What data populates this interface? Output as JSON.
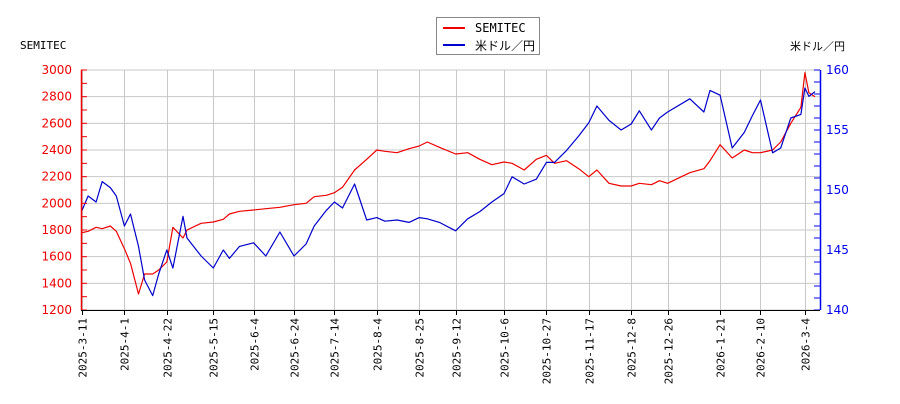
{
  "chart_data": {
    "type": "line",
    "title": "",
    "left_axis_title": "SEMITEC",
    "right_axis_title": "米ドル／円",
    "legend": [
      "SEMITEC",
      "米ドル／円"
    ],
    "legend_position": "top-center",
    "grid": true,
    "colors": {
      "semitec": "#ee0000",
      "usdjpy": "#0000cc",
      "grid": "#c8c8c8",
      "left_axis": "#ee0000",
      "right_axis": "#0000ee"
    },
    "y_left": {
      "label": "SEMITEC",
      "ylim": [
        1200,
        3000
      ],
      "ticks": [
        1200,
        1400,
        1600,
        1800,
        2000,
        2200,
        2400,
        2600,
        2800,
        3000
      ]
    },
    "y_right": {
      "label": "米ドル／円",
      "ylim": [
        140,
        160
      ],
      "ticks": [
        140,
        145,
        150,
        155,
        160
      ]
    },
    "x_tick_labels": [
      "2025-3-11",
      "2025-4-1",
      "2025-4-22",
      "2025-5-15",
      "2025-6-4",
      "2025-6-24",
      "2025-7-14",
      "2025-8-4",
      "2025-8-25",
      "2025-9-12",
      "2025-10-6",
      "2025-10-27",
      "2025-11-17",
      "2025-12-8",
      "2025-12-26",
      "2026-1-21",
      "2026-2-10",
      "2026-3-4"
    ],
    "x": [
      "2025-3-11",
      "2025-3-14",
      "2025-3-18",
      "2025-3-21",
      "2025-3-25",
      "2025-3-28",
      "2025-4-1",
      "2025-4-4",
      "2025-4-8",
      "2025-4-11",
      "2025-4-15",
      "2025-4-18",
      "2025-4-22",
      "2025-4-25",
      "2025-4-30",
      "2025-5-2",
      "2025-5-9",
      "2025-5-15",
      "2025-5-20",
      "2025-5-23",
      "2025-5-28",
      "2025-6-4",
      "2025-6-10",
      "2025-6-17",
      "2025-6-24",
      "2025-6-30",
      "2025-7-4",
      "2025-7-10",
      "2025-7-14",
      "2025-7-18",
      "2025-7-24",
      "2025-7-30",
      "2025-8-4",
      "2025-8-8",
      "2025-8-14",
      "2025-8-20",
      "2025-8-25",
      "2025-8-29",
      "2025-9-4",
      "2025-9-12",
      "2025-9-18",
      "2025-9-24",
      "2025-9-30",
      "2025-10-6",
      "2025-10-10",
      "2025-10-16",
      "2025-10-22",
      "2025-10-27",
      "2025-10-31",
      "2025-11-6",
      "2025-11-12",
      "2025-11-17",
      "2025-11-21",
      "2025-11-27",
      "2025-12-3",
      "2025-12-8",
      "2025-12-12",
      "2025-12-18",
      "2025-12-22",
      "2025-12-26",
      "2026-1-6",
      "2026-1-13",
      "2026-1-16",
      "2026-1-21",
      "2026-1-27",
      "2026-2-2",
      "2026-2-6",
      "2026-2-10",
      "2026-2-16",
      "2026-2-20",
      "2026-2-25",
      "2026-3-2",
      "2026-3-4",
      "2026-3-6",
      "2026-3-9"
    ],
    "series": [
      {
        "name": "SEMITEC",
        "axis": "left",
        "values": [
          1780,
          1790,
          1820,
          1810,
          1830,
          1790,
          1660,
          1550,
          1320,
          1470,
          1470,
          1500,
          1560,
          1820,
          1740,
          1800,
          1850,
          1860,
          1880,
          1920,
          1940,
          1950,
          1960,
          1970,
          1990,
          2000,
          2050,
          2060,
          2080,
          2120,
          2250,
          2330,
          2400,
          2390,
          2380,
          2410,
          2430,
          2460,
          2420,
          2370,
          2380,
          2330,
          2290,
          2310,
          2300,
          2250,
          2330,
          2360,
          2300,
          2320,
          2260,
          2200,
          2250,
          2150,
          2130,
          2130,
          2150,
          2140,
          2170,
          2150,
          2230,
          2260,
          2320,
          2440,
          2340,
          2400,
          2380,
          2380,
          2400,
          2460,
          2600,
          2720,
          2980,
          2830,
          2800
        ]
      },
      {
        "name": "米ドル／円",
        "axis": "right",
        "values": [
          148.3,
          149.5,
          149.0,
          150.7,
          150.2,
          149.5,
          147.0,
          148.0,
          145.3,
          142.5,
          141.2,
          143.0,
          145.0,
          143.5,
          147.8,
          146.0,
          144.5,
          143.5,
          145.0,
          144.3,
          145.3,
          145.6,
          144.5,
          146.5,
          144.5,
          145.5,
          147.0,
          148.3,
          149.0,
          148.5,
          150.5,
          147.5,
          147.7,
          147.4,
          147.5,
          147.3,
          147.7,
          147.6,
          147.3,
          146.6,
          147.6,
          148.2,
          149.0,
          149.7,
          151.1,
          150.5,
          150.9,
          152.3,
          152.3,
          153.3,
          154.5,
          155.6,
          157.0,
          155.8,
          155.0,
          155.5,
          156.6,
          155.0,
          156.0,
          156.5,
          157.6,
          156.5,
          158.3,
          157.9,
          153.5,
          154.8,
          156.2,
          157.5,
          153.1,
          153.5,
          156.0,
          156.3,
          158.5,
          157.8,
          158.2
        ]
      }
    ]
  }
}
